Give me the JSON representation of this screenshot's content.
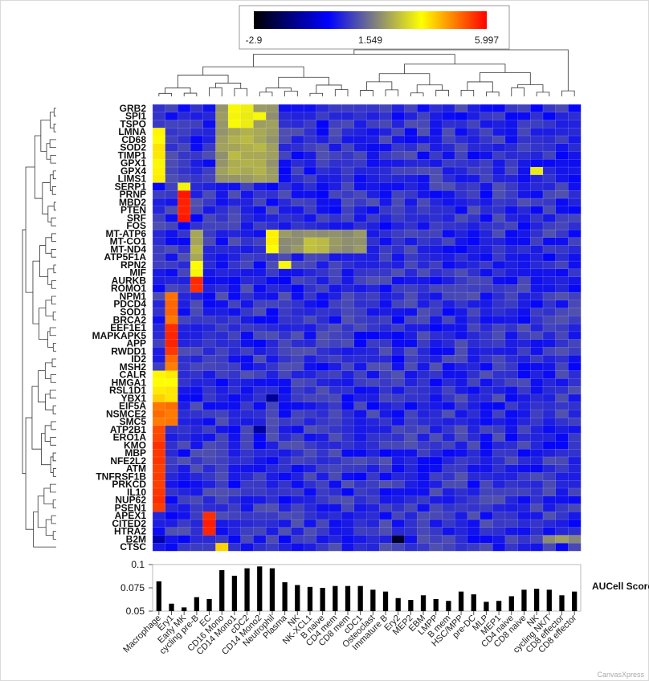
{
  "chart_data": {
    "type": "heatmap",
    "color_scale": {
      "min": -2.9,
      "mid": 1.549,
      "max": 5.997,
      "labels": [
        "-2.9",
        "1.549",
        "5.997"
      ],
      "colors": [
        "#000000",
        "#0000ff",
        "#ffff00",
        "#ff0000"
      ]
    },
    "rows": [
      "GRB2",
      "SPI1",
      "TSPO",
      "LMNA",
      "CD68",
      "SOD2",
      "TIMP1",
      "GPX1",
      "GPX4",
      "LIMS1",
      "SERP1",
      "PRNP",
      "MBD2",
      "PTEN",
      "SRF",
      "FOS",
      "MT-ATP6",
      "MT-CO1",
      "MT-ND4",
      "ATP5F1A",
      "RPN2",
      "MIF",
      "AURKB",
      "ROMO1",
      "NPM1",
      "PDCD4",
      "SOD1",
      "BRCA2",
      "EEF1E1",
      "MAPKAPK5",
      "APP",
      "RWDD1",
      "ID2",
      "MSH2",
      "CALR",
      "HMGA1",
      "RSL1D1",
      "YBX1",
      "EIF5A",
      "NSMCE2",
      "SMC5",
      "ATP2B1",
      "ERO1A",
      "KMO",
      "MBP",
      "NFE2L2",
      "ATM",
      "TNFRSF1B",
      "PRKCD",
      "IL10",
      "NUP62",
      "PSEN1",
      "APEX1",
      "CITED2",
      "HTRA2",
      "B2M",
      "CTSC"
    ],
    "columns": [
      "Macrophage",
      "Ery1",
      "Early MK",
      "cycling pre-B",
      "EC",
      "CD16 Mono",
      "CD14 Mono1",
      "cDC2",
      "CD14 Mono2",
      "Neutrophil",
      "Plasma",
      "NK",
      "NK-XCL1",
      "B naive",
      "CD4 mem",
      "CD8 mem",
      "cDC1",
      "Osteoclast",
      "Immature B",
      "Ery2",
      "MEP2",
      "EBM",
      "LMPP",
      "B mem",
      "HSC/MPP",
      "pre-DC",
      "MLP",
      "MEP1",
      "CD4 naive",
      "CD8 naive",
      "NK",
      "cycling NK/T",
      "CD8 effector",
      "CD8 effector"
    ],
    "bar_series": {
      "name": "AUCell Score",
      "values": [
        0.082,
        0.058,
        0.054,
        0.065,
        0.063,
        0.094,
        0.088,
        0.096,
        0.098,
        0.096,
        0.081,
        0.078,
        0.076,
        0.075,
        0.077,
        0.077,
        0.077,
        0.073,
        0.071,
        0.064,
        0.062,
        0.067,
        0.063,
        0.061,
        0.071,
        0.068,
        0.06,
        0.061,
        0.066,
        0.073,
        0.074,
        0.073,
        0.067,
        0.071
      ],
      "ylim": [
        0.05,
        0.1
      ],
      "ticks": [
        "0.1",
        "0.075",
        "0.05"
      ]
    },
    "dendrogram_rows": true,
    "dendrogram_columns": true
  },
  "watermark": "CanvasXpress"
}
